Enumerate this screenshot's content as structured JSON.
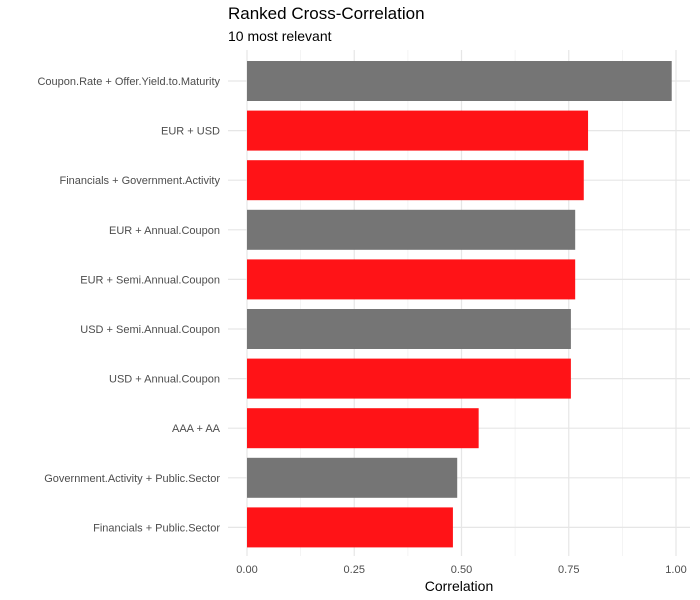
{
  "chart_data": {
    "type": "bar",
    "orientation": "horizontal",
    "title": "Ranked Cross-Correlation",
    "subtitle": "10 most relevant",
    "xlabel": "Correlation",
    "ylabel": "",
    "xlim": [
      0,
      1.0
    ],
    "x_ticks": [
      "0.00",
      "0.25",
      "0.50",
      "0.75",
      "1.00"
    ],
    "grid": true,
    "categories": [
      "Coupon.Rate + Offer.Yield.to.Maturity",
      "EUR + USD",
      "Financials + Government.Activity",
      "EUR + Annual.Coupon",
      "EUR + Semi.Annual.Coupon",
      "USD + Semi.Annual.Coupon",
      "USD + Annual.Coupon",
      "AAA + AA",
      "Government.Activity + Public.Sector",
      "Financials + Public.Sector"
    ],
    "values": [
      0.99,
      0.795,
      0.785,
      0.765,
      0.765,
      0.755,
      0.755,
      0.54,
      0.49,
      0.48
    ],
    "bar_colors": [
      "#757575",
      "#ff1317",
      "#ff1317",
      "#757575",
      "#ff1317",
      "#757575",
      "#ff1317",
      "#ff1317",
      "#757575",
      "#ff1317"
    ]
  }
}
